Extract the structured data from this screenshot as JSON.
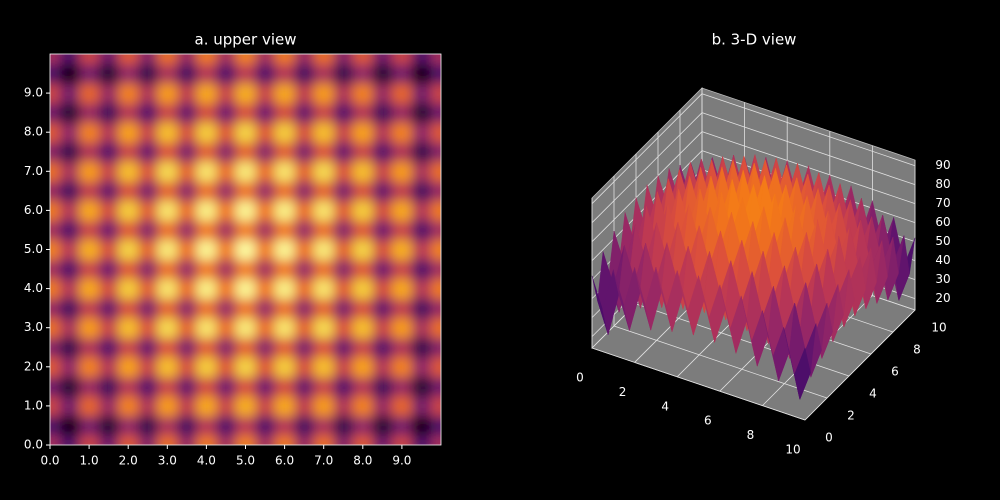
{
  "chart_data": [
    {
      "type": "heatmap",
      "title": "a. upper view",
      "x": [
        0,
        0.5,
        1,
        1.5,
        2,
        2.5,
        3,
        3.5,
        4,
        4.5,
        5,
        5.5,
        6,
        6.5,
        7,
        7.5,
        8,
        8.5,
        9,
        9.5,
        10
      ],
      "y": [
        0,
        0.5,
        1,
        1.5,
        2,
        2.5,
        3,
        3.5,
        4,
        4.5,
        5,
        5.5,
        6,
        6.5,
        7,
        7.5,
        8,
        8.5,
        9,
        9.5,
        10
      ],
      "z": [
        [
          52,
          36,
          59,
          42,
          64,
          46,
          68,
          49,
          70,
          51,
          71,
          51,
          70,
          49,
          68,
          46,
          64,
          42,
          59,
          36,
          52
        ],
        [
          36,
          20,
          43,
          26,
          48,
          30,
          52,
          33,
          54,
          35,
          55,
          35,
          54,
          33,
          52,
          30,
          48,
          26,
          43,
          20,
          36
        ],
        [
          59,
          43,
          66,
          49,
          71,
          53,
          75,
          56,
          77,
          58,
          78,
          58,
          77,
          56,
          75,
          53,
          71,
          49,
          66,
          43,
          59
        ],
        [
          42,
          26,
          49,
          32,
          54,
          36,
          58,
          39,
          60,
          41,
          61,
          41,
          60,
          39,
          58,
          36,
          54,
          32,
          49,
          26,
          42
        ],
        [
          64,
          48,
          71,
          54,
          76,
          58,
          80,
          61,
          82,
          63,
          83,
          63,
          82,
          61,
          80,
          58,
          76,
          54,
          71,
          48,
          64
        ],
        [
          46,
          30,
          53,
          36,
          58,
          40,
          62,
          43,
          64,
          45,
          65,
          45,
          64,
          43,
          62,
          40,
          58,
          36,
          53,
          30,
          46
        ],
        [
          68,
          52,
          75,
          58,
          80,
          62,
          84,
          65,
          86,
          67,
          87,
          67,
          86,
          65,
          84,
          62,
          80,
          58,
          75,
          52,
          68
        ],
        [
          49,
          33,
          56,
          39,
          61,
          43,
          65,
          46,
          67,
          48,
          68,
          48,
          67,
          46,
          65,
          43,
          61,
          39,
          56,
          33,
          49
        ],
        [
          70,
          54,
          77,
          60,
          82,
          64,
          86,
          67,
          88,
          69,
          89,
          69,
          88,
          67,
          86,
          64,
          82,
          60,
          77,
          54,
          70
        ],
        [
          51,
          35,
          58,
          41,
          63,
          45,
          67,
          48,
          69,
          50,
          70,
          50,
          69,
          48,
          67,
          45,
          63,
          41,
          58,
          35,
          51
        ],
        [
          71,
          55,
          78,
          61,
          83,
          65,
          87,
          68,
          89,
          70,
          90,
          70,
          89,
          68,
          87,
          65,
          83,
          61,
          78,
          55,
          71
        ],
        [
          51,
          35,
          58,
          41,
          63,
          45,
          67,
          48,
          69,
          50,
          70,
          50,
          69,
          48,
          67,
          45,
          63,
          41,
          58,
          35,
          51
        ],
        [
          70,
          54,
          77,
          60,
          82,
          64,
          86,
          67,
          88,
          69,
          89,
          69,
          88,
          67,
          86,
          64,
          82,
          60,
          77,
          54,
          70
        ],
        [
          49,
          33,
          56,
          39,
          61,
          43,
          65,
          46,
          67,
          48,
          68,
          48,
          67,
          46,
          65,
          43,
          61,
          39,
          56,
          33,
          49
        ],
        [
          68,
          52,
          75,
          58,
          80,
          62,
          84,
          65,
          86,
          67,
          87,
          67,
          86,
          65,
          84,
          62,
          80,
          58,
          75,
          52,
          68
        ],
        [
          46,
          30,
          53,
          36,
          58,
          40,
          62,
          43,
          64,
          45,
          65,
          45,
          64,
          43,
          62,
          40,
          58,
          36,
          53,
          30,
          46
        ],
        [
          64,
          48,
          71,
          54,
          76,
          58,
          80,
          61,
          82,
          63,
          83,
          63,
          82,
          61,
          80,
          58,
          76,
          54,
          71,
          48,
          64
        ],
        [
          42,
          26,
          49,
          32,
          54,
          36,
          58,
          39,
          60,
          41,
          61,
          41,
          60,
          39,
          58,
          36,
          54,
          32,
          49,
          26,
          42
        ],
        [
          59,
          43,
          66,
          49,
          71,
          53,
          75,
          56,
          77,
          58,
          78,
          58,
          77,
          56,
          75,
          53,
          71,
          49,
          66,
          43,
          59
        ],
        [
          36,
          20,
          43,
          26,
          48,
          30,
          52,
          33,
          54,
          35,
          55,
          35,
          54,
          33,
          52,
          30,
          48,
          26,
          43,
          20,
          36
        ],
        [
          52,
          36,
          59,
          42,
          64,
          46,
          68,
          49,
          70,
          51,
          71,
          51,
          70,
          49,
          68,
          46,
          64,
          42,
          59,
          36,
          52
        ]
      ],
      "colormap": "inferno",
      "clim": [
        20,
        90
      ],
      "xlim": [
        0,
        10
      ],
      "ylim": [
        0,
        10
      ],
      "xticks": [
        {
          "value": 0,
          "label": "0.0"
        },
        {
          "value": 1,
          "label": "1.0"
        },
        {
          "value": 2,
          "label": "2.0"
        },
        {
          "value": 3,
          "label": "3.0"
        },
        {
          "value": 4,
          "label": "4.0"
        },
        {
          "value": 5,
          "label": "5.0"
        },
        {
          "value": 6,
          "label": "6.0"
        },
        {
          "value": 7,
          "label": "7.0"
        },
        {
          "value": 8,
          "label": "8.0"
        },
        {
          "value": 9,
          "label": "9.0"
        }
      ],
      "yticks": [
        {
          "value": 0,
          "label": "0.0"
        },
        {
          "value": 1,
          "label": "1.0"
        },
        {
          "value": 2,
          "label": "2.0"
        },
        {
          "value": 3,
          "label": "3.0"
        },
        {
          "value": 4,
          "label": "4.0"
        },
        {
          "value": 5,
          "label": "5.0"
        },
        {
          "value": 6,
          "label": "6.0"
        },
        {
          "value": 7,
          "label": "7.0"
        },
        {
          "value": 8,
          "label": "8.0"
        },
        {
          "value": 9,
          "label": "9.0"
        }
      ]
    },
    {
      "type": "surface3d",
      "title": "b. 3-D view",
      "x": [
        0,
        0.5,
        1,
        1.5,
        2,
        2.5,
        3,
        3.5,
        4,
        4.5,
        5,
        5.5,
        6,
        6.5,
        7,
        7.5,
        8,
        8.5,
        9,
        9.5,
        10
      ],
      "y": [
        0,
        0.5,
        1,
        1.5,
        2,
        2.5,
        3,
        3.5,
        4,
        4.5,
        5,
        5.5,
        6,
        6.5,
        7,
        7.5,
        8,
        8.5,
        9,
        9.5,
        10
      ],
      "z": [
        [
          52,
          36,
          59,
          42,
          64,
          46,
          68,
          49,
          70,
          51,
          71,
          51,
          70,
          49,
          68,
          46,
          64,
          42,
          59,
          36,
          52
        ],
        [
          36,
          20,
          43,
          26,
          48,
          30,
          52,
          33,
          54,
          35,
          55,
          35,
          54,
          33,
          52,
          30,
          48,
          26,
          43,
          20,
          36
        ],
        [
          59,
          43,
          66,
          49,
          71,
          53,
          75,
          56,
          77,
          58,
          78,
          58,
          77,
          56,
          75,
          53,
          71,
          49,
          66,
          43,
          59
        ],
        [
          42,
          26,
          49,
          32,
          54,
          36,
          58,
          39,
          60,
          41,
          61,
          41,
          60,
          39,
          58,
          36,
          54,
          32,
          49,
          26,
          42
        ],
        [
          64,
          48,
          71,
          54,
          76,
          58,
          80,
          61,
          82,
          63,
          83,
          63,
          82,
          61,
          80,
          58,
          76,
          54,
          71,
          48,
          64
        ],
        [
          46,
          30,
          53,
          36,
          58,
          40,
          62,
          43,
          64,
          45,
          65,
          45,
          64,
          43,
          62,
          40,
          58,
          36,
          53,
          30,
          46
        ],
        [
          68,
          52,
          75,
          58,
          80,
          62,
          84,
          65,
          86,
          67,
          87,
          67,
          86,
          65,
          84,
          62,
          80,
          58,
          75,
          52,
          68
        ],
        [
          49,
          33,
          56,
          39,
          61,
          43,
          65,
          46,
          67,
          48,
          68,
          48,
          67,
          46,
          65,
          43,
          61,
          39,
          56,
          33,
          49
        ],
        [
          70,
          54,
          77,
          60,
          82,
          64,
          86,
          67,
          88,
          69,
          89,
          69,
          88,
          67,
          86,
          64,
          82,
          60,
          77,
          54,
          70
        ],
        [
          51,
          35,
          58,
          41,
          63,
          45,
          67,
          48,
          69,
          50,
          70,
          50,
          69,
          48,
          67,
          45,
          63,
          41,
          58,
          35,
          51
        ],
        [
          71,
          55,
          78,
          61,
          83,
          65,
          87,
          68,
          89,
          70,
          90,
          70,
          89,
          68,
          87,
          65,
          83,
          61,
          78,
          55,
          71
        ],
        [
          51,
          35,
          58,
          41,
          63,
          45,
          67,
          48,
          69,
          50,
          70,
          50,
          69,
          48,
          67,
          45,
          63,
          41,
          58,
          35,
          51
        ],
        [
          70,
          54,
          77,
          60,
          82,
          64,
          86,
          67,
          88,
          69,
          89,
          69,
          88,
          67,
          86,
          64,
          82,
          60,
          77,
          54,
          70
        ],
        [
          49,
          33,
          56,
          39,
          61,
          43,
          65,
          46,
          67,
          48,
          68,
          48,
          67,
          46,
          65,
          43,
          61,
          39,
          56,
          33,
          49
        ],
        [
          68,
          52,
          75,
          58,
          80,
          62,
          84,
          65,
          86,
          67,
          87,
          67,
          86,
          65,
          84,
          62,
          80,
          58,
          75,
          52,
          68
        ],
        [
          46,
          30,
          53,
          36,
          58,
          40,
          62,
          43,
          64,
          45,
          65,
          45,
          64,
          43,
          62,
          40,
          58,
          36,
          53,
          30,
          46
        ],
        [
          64,
          48,
          71,
          54,
          76,
          58,
          80,
          61,
          82,
          63,
          83,
          63,
          82,
          61,
          80,
          58,
          76,
          54,
          71,
          48,
          64
        ],
        [
          42,
          26,
          49,
          32,
          54,
          36,
          58,
          39,
          60,
          41,
          61,
          41,
          60,
          39,
          58,
          36,
          54,
          32,
          49,
          26,
          42
        ],
        [
          59,
          43,
          66,
          49,
          71,
          53,
          75,
          56,
          77,
          58,
          78,
          58,
          77,
          56,
          75,
          53,
          71,
          49,
          66,
          43,
          59
        ],
        [
          36,
          20,
          43,
          26,
          48,
          30,
          52,
          33,
          54,
          35,
          55,
          35,
          54,
          33,
          52,
          30,
          48,
          26,
          43,
          20,
          36
        ],
        [
          52,
          36,
          59,
          42,
          64,
          46,
          68,
          49,
          70,
          51,
          71,
          51,
          70,
          49,
          68,
          46,
          64,
          42,
          59,
          36,
          52
        ]
      ],
      "colormap": "inferno",
      "clim": [
        20,
        90
      ],
      "xlim": [
        0,
        10
      ],
      "ylim": [
        0,
        10
      ],
      "zlim": [
        14,
        93
      ],
      "xticks": [
        0,
        2,
        4,
        6,
        8,
        10
      ],
      "yticks": [
        0,
        2,
        4,
        6,
        8,
        10
      ],
      "zticks": [
        20,
        30,
        40,
        50,
        60,
        70,
        80,
        90
      ]
    }
  ]
}
